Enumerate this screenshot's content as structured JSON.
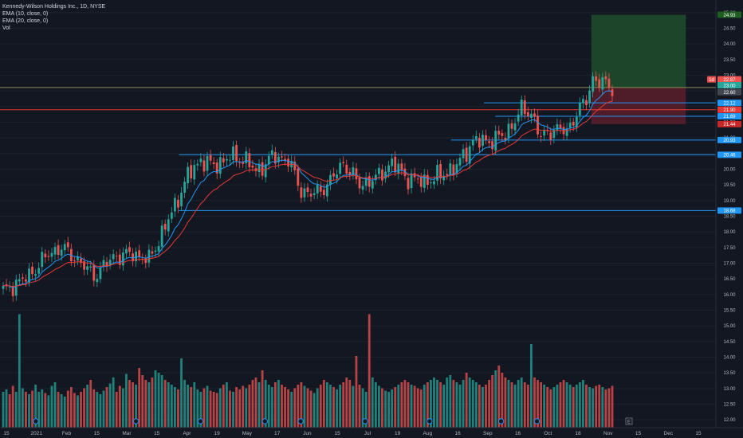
{
  "legend": {
    "title": "Kennedy-Wilson Holdings Inc., 1D, NYSE",
    "ema1": "EMA (10, close, 0)",
    "ema2": "EMA (20, close, 0)",
    "vol": "Vol"
  },
  "colors": {
    "background": "#131722",
    "up": "#26a69a",
    "down": "#ef5350",
    "ema_fast": "#2196f3",
    "ema_slow": "#e53935",
    "hline": "#2196f3",
    "redline": "#ff0000",
    "profit_zone": "#1e4d2b",
    "loss_zone": "#5a1f2a"
  },
  "chart_data": {
    "type": "candlestick",
    "y_axis": {
      "ylim": [
        11.75,
        25.3
      ],
      "ticks": [
        "12.00",
        "12.50",
        "13.00",
        "13.50",
        "14.00",
        "14.50",
        "15.00",
        "15.50",
        "16.00",
        "16.50",
        "17.00",
        "17.50",
        "18.00",
        "18.50",
        "19.00",
        "19.50",
        "20.00",
        "20.50",
        "21.00",
        "21.50",
        "22.00",
        "22.50",
        "23.00",
        "23.50",
        "24.00",
        "24.50",
        "25.00"
      ]
    },
    "x_axis": {
      "ticks": [
        "15",
        "2021",
        "Feb",
        "15",
        "Mar",
        "15",
        "Apr",
        "19",
        "May",
        "17",
        "Jun",
        "15",
        "Jul",
        "19",
        "Aug",
        "16",
        "Sep",
        "16",
        "Oct",
        "18",
        "Nov",
        "15",
        "Dec",
        "15"
      ]
    },
    "price_tags": [
      {
        "label": "24.93",
        "value": 24.93,
        "color": "#1b5e20"
      },
      {
        "label": "22.87",
        "value": 22.87,
        "color": "#ef5350"
      },
      {
        "label": "23.00",
        "value": 22.68,
        "color": "#26a69a"
      },
      {
        "label": "22.60",
        "value": 22.46,
        "color": "#434651"
      },
      {
        "label": "22.12",
        "value": 22.12,
        "color": "#2196f3"
      },
      {
        "label": "21.90",
        "value": 21.9,
        "color": "#e53935"
      },
      {
        "label": "21.69",
        "value": 21.69,
        "color": "#2196f3"
      },
      {
        "label": "21.44",
        "value": 21.44,
        "color": "#c62828"
      },
      {
        "label": "20.93",
        "value": 20.93,
        "color": "#2196f3"
      },
      {
        "label": "20.46",
        "value": 20.46,
        "color": "#2196f3"
      },
      {
        "label": "18.68",
        "value": 18.68,
        "color": "#2196f3"
      }
    ],
    "tag_extra_label": "1d",
    "horizontal_lines": [
      {
        "value": 22.61,
        "from": 0.0,
        "to": 1.0,
        "color": "#8d8d5a"
      },
      {
        "value": 21.9,
        "from": 0.0,
        "to": 1.0,
        "color": "#e53935"
      },
      {
        "value": 22.12,
        "from": 0.676,
        "to": 1.0,
        "color": "#2196f3"
      },
      {
        "value": 21.69,
        "from": 0.692,
        "to": 1.0,
        "color": "#2196f3"
      },
      {
        "value": 20.93,
        "from": 0.63,
        "to": 1.0,
        "color": "#2196f3"
      },
      {
        "value": 20.46,
        "from": 0.25,
        "to": 1.0,
        "color": "#2196f3"
      },
      {
        "value": 18.68,
        "from": 0.25,
        "to": 1.0,
        "color": "#2196f3"
      }
    ],
    "long_position": {
      "entry": 22.61,
      "target": 24.93,
      "stop": 21.44,
      "from_ratio": 0.826,
      "to_ratio": 0.958
    },
    "volume_max": 1.0,
    "event_markers": [
      0.05,
      0.19,
      0.28,
      0.37,
      0.42,
      0.51,
      0.6,
      0.7,
      0.75
    ],
    "earnings_marker": "E",
    "anchors": [
      [
        0,
        16.1
      ],
      [
        8,
        16.6
      ],
      [
        14,
        17.3
      ],
      [
        18,
        17.5
      ],
      [
        23,
        17.1
      ],
      [
        28,
        16.6
      ],
      [
        34,
        17.2
      ],
      [
        40,
        17.3
      ],
      [
        45,
        17.1
      ],
      [
        52,
        18.6
      ],
      [
        57,
        19.8
      ],
      [
        61,
        20.3
      ],
      [
        65,
        20.1
      ],
      [
        70,
        20.4
      ],
      [
        75,
        20.3
      ],
      [
        78,
        19.9
      ],
      [
        83,
        20.4
      ],
      [
        88,
        20.3
      ],
      [
        92,
        19.3
      ],
      [
        96,
        19.2
      ],
      [
        100,
        19.5
      ],
      [
        105,
        20.2
      ],
      [
        110,
        19.5
      ],
      [
        115,
        19.7
      ],
      [
        120,
        20.2
      ],
      [
        125,
        19.7
      ],
      [
        130,
        19.6
      ],
      [
        135,
        19.8
      ],
      [
        140,
        20.1
      ],
      [
        145,
        20.9
      ],
      [
        150,
        20.9
      ],
      [
        155,
        21.1
      ],
      [
        160,
        21.9
      ],
      [
        163,
        21.8
      ],
      [
        166,
        21.0
      ],
      [
        170,
        21.3
      ],
      [
        174,
        21.2
      ],
      [
        177,
        21.8
      ],
      [
        180,
        22.2
      ],
      [
        182,
        22.9
      ],
      [
        186,
        22.7
      ],
      [
        188,
        22.6
      ]
    ],
    "volumes": [
      0.3,
      0.32,
      0.28,
      0.35,
      0.3,
      0.95,
      0.33,
      0.3,
      0.28,
      0.31,
      0.36,
      0.3,
      0.32,
      0.29,
      0.27,
      0.35,
      0.38,
      0.3,
      0.28,
      0.26,
      0.31,
      0.34,
      0.29,
      0.27,
      0.3,
      0.33,
      0.36,
      0.4,
      0.32,
      0.3,
      0.28,
      0.31,
      0.34,
      0.37,
      0.42,
      0.3,
      0.35,
      0.33,
      0.45,
      0.4,
      0.38,
      0.36,
      0.5,
      0.44,
      0.4,
      0.38,
      0.42,
      0.48,
      0.46,
      0.44,
      0.4,
      0.38,
      0.36,
      0.34,
      0.32,
      0.58,
      0.4,
      0.36,
      0.34,
      0.38,
      0.32,
      0.3,
      0.33,
      0.35,
      0.31,
      0.3,
      0.29,
      0.33,
      0.36,
      0.38,
      0.31,
      0.3,
      0.34,
      0.32,
      0.35,
      0.33,
      0.36,
      0.4,
      0.42,
      0.38,
      0.48,
      0.4,
      0.36,
      0.34,
      0.38,
      0.4,
      0.36,
      0.34,
      0.32,
      0.3,
      0.33,
      0.36,
      0.38,
      0.35,
      0.33,
      0.31,
      0.29,
      0.33,
      0.36,
      0.4,
      0.38,
      0.36,
      0.34,
      0.32,
      0.36,
      0.38,
      0.42,
      0.4,
      0.35,
      0.6,
      0.36,
      0.33,
      0.3,
      0.95,
      0.42,
      0.38,
      0.35,
      0.33,
      0.31,
      0.3,
      0.32,
      0.34,
      0.36,
      0.38,
      0.4,
      0.38,
      0.36,
      0.35,
      0.33,
      0.32,
      0.36,
      0.38,
      0.4,
      0.42,
      0.4,
      0.38,
      0.36,
      0.42,
      0.44,
      0.4,
      0.38,
      0.36,
      0.4,
      0.46,
      0.42,
      0.4,
      0.38,
      0.36,
      0.34,
      0.36,
      0.4,
      0.44,
      0.48,
      0.52,
      0.46,
      0.42,
      0.4,
      0.38,
      0.36,
      0.4,
      0.42,
      0.38,
      0.36,
      0.7,
      0.42,
      0.4,
      0.38,
      0.36,
      0.34,
      0.32,
      0.34,
      0.36,
      0.38,
      0.4,
      0.38,
      0.36,
      0.34,
      0.36,
      0.38,
      0.4,
      0.36,
      0.34,
      0.33,
      0.35,
      0.36,
      0.34,
      0.32,
      0.33,
      0.35
    ]
  }
}
